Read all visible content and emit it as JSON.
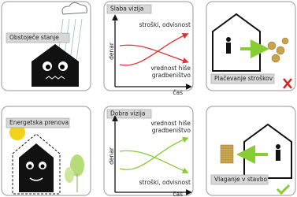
{
  "panels": [
    {
      "label": "Obstoječe stanje"
    },
    {
      "label": "Slaba vizija",
      "y_axis": "denar",
      "x_axis": "čas",
      "upper_curve": "stroški, odvisnost",
      "lower_curve": [
        "vrednost hiše",
        "gradbeništvo"
      ]
    },
    {
      "label": "Plačevanje stroškov"
    },
    {
      "label": "Energetska prenova"
    },
    {
      "label": "Dobra vizija",
      "y_axis": "denar",
      "x_axis": "čas",
      "upper_curve": [
        "vrednost hiše",
        "gradbeništvo"
      ],
      "lower_curve": "stroški, odvisnost"
    },
    {
      "label": "Vlaganje v stavbo"
    }
  ]
}
